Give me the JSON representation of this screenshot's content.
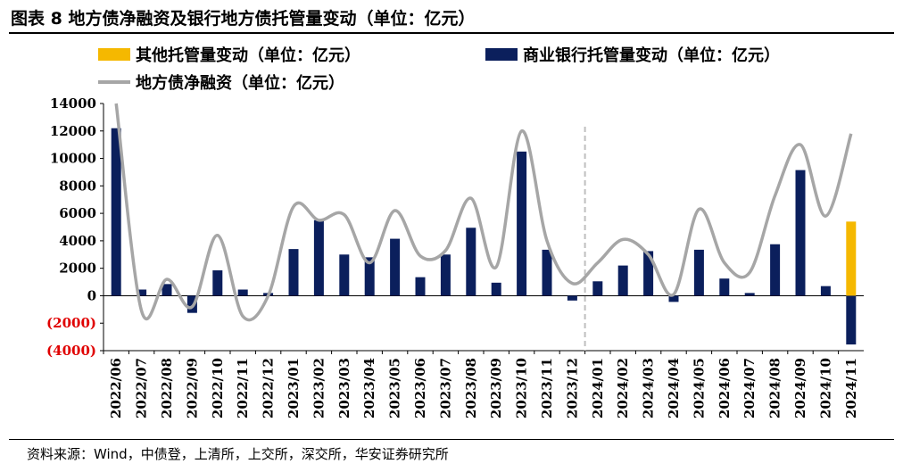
{
  "title": "图表 8 地方债净融资及银行地方债托管量变动（单位：亿元）",
  "source": "资料来源：Wind，中债登，上清所，上交所，深交所，华安证券研究所",
  "colors": {
    "other": "#F5B800",
    "bank": "#0B1F5C",
    "net": "#A6A6A6",
    "negative_label": "#E00000",
    "divider": "#BFBFBF"
  },
  "chart_data": {
    "type": "bar+line",
    "categories": [
      "2022/06",
      "2022/07",
      "2022/08",
      "2022/09",
      "2022/10",
      "2022/11",
      "2022/12",
      "2023/01",
      "2023/02",
      "2023/03",
      "2023/04",
      "2023/05",
      "2023/06",
      "2023/07",
      "2023/08",
      "2023/09",
      "2023/10",
      "2023/11",
      "2023/12",
      "2024/01",
      "2024/02",
      "2024/03",
      "2024/04",
      "2024/05",
      "2024/06",
      "2024/07",
      "2024/08",
      "2024/09",
      "2024/10",
      "2024/11"
    ],
    "series": [
      {
        "name": "其他托管量变动（单位：亿元）",
        "type": "bar",
        "values": [
          0,
          0,
          0,
          0,
          0,
          0,
          0,
          0,
          0,
          0,
          0,
          0,
          0,
          0,
          0,
          0,
          0,
          0,
          0,
          0,
          0,
          0,
          0,
          0,
          0,
          0,
          0,
          0,
          0,
          5400
        ]
      },
      {
        "name": "商业银行托管量变动（单位：亿元）",
        "type": "bar",
        "values": [
          12200,
          450,
          850,
          -1250,
          1850,
          450,
          200,
          3400,
          5500,
          3000,
          2800,
          4150,
          1350,
          3000,
          4950,
          950,
          10500,
          3350,
          -350,
          1050,
          2200,
          3250,
          -450,
          3350,
          1250,
          200,
          3750,
          9150,
          700,
          -3550
        ]
      },
      {
        "name": "地方债净融资（单位：亿元）",
        "type": "line",
        "values": [
          14000,
          -1100,
          1200,
          -800,
          4400,
          -1500,
          0,
          6500,
          5500,
          5900,
          2400,
          6200,
          2900,
          3300,
          7100,
          2100,
          12000,
          4000,
          900,
          2400,
          4100,
          3000,
          100,
          6300,
          2400,
          1700,
          7300,
          11000,
          5800,
          11800
        ]
      }
    ],
    "ylim": [
      -4000,
      14000
    ],
    "yticks": [
      {
        "value": 14000,
        "label": "14000"
      },
      {
        "value": 12000,
        "label": "12000"
      },
      {
        "value": 10000,
        "label": "10000"
      },
      {
        "value": 8000,
        "label": "8000"
      },
      {
        "value": 6000,
        "label": "6000"
      },
      {
        "value": 4000,
        "label": "4000"
      },
      {
        "value": 2000,
        "label": "2000"
      },
      {
        "value": 0,
        "label": "0"
      },
      {
        "value": -2000,
        "label": "(2000)"
      },
      {
        "value": -4000,
        "label": "(4000)"
      }
    ],
    "bar_stack": true,
    "legend_position": "top",
    "grid": false,
    "divider_after": "2023/12"
  }
}
